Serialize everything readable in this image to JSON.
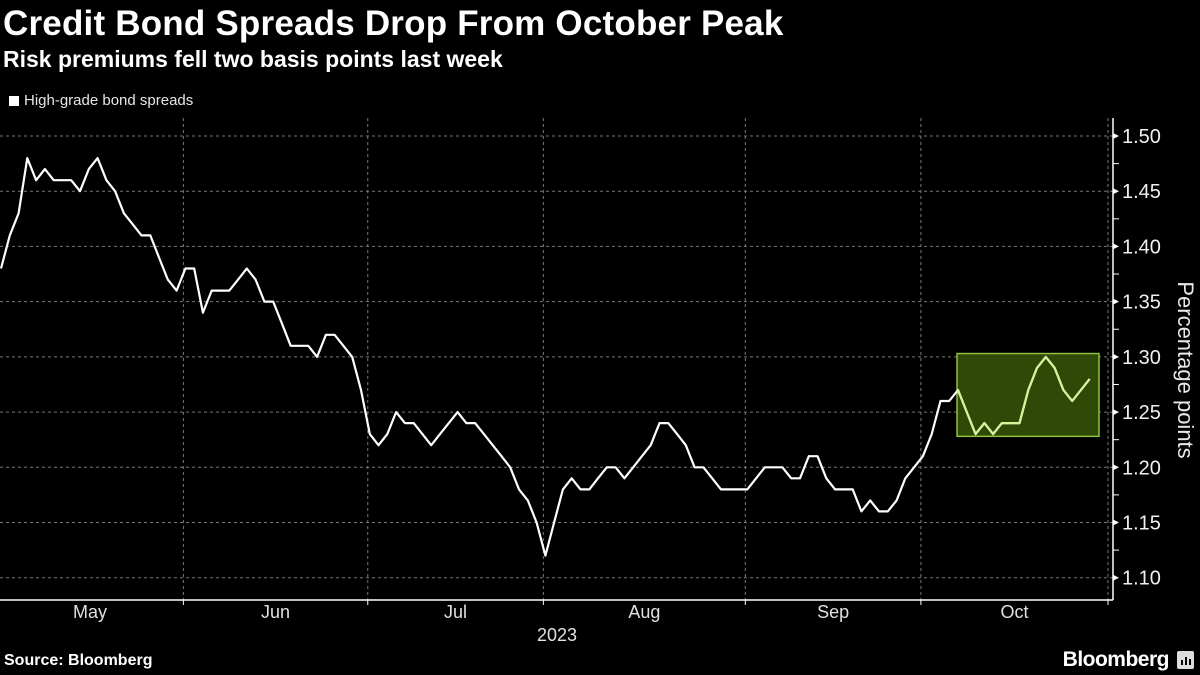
{
  "header": {
    "title": "Credit Bond Spreads Drop From October Peak",
    "subtitle": "Risk premiums fell two basis points last week"
  },
  "footer": {
    "source": "Source: Bloomberg",
    "logo": "Bloomberg"
  },
  "chart_data": {
    "type": "line",
    "title": "Credit Bond Spreads Drop From October Peak",
    "subtitle": "Risk premiums fell two basis points last week",
    "ylabel": "Percentage points",
    "xlabel": "2023",
    "ylim": [
      1.1,
      1.5
    ],
    "yticks": [
      "1.10",
      "1.15",
      "1.20",
      "1.25",
      "1.30",
      "1.35",
      "1.40",
      "1.45",
      "1.50"
    ],
    "y_axis_position": "right",
    "grid": true,
    "legend_position": "top-left",
    "xticks": [
      "May",
      "Jun",
      "Jul",
      "Aug",
      "Sep",
      "Oct"
    ],
    "colors": {
      "line": "#ffffff",
      "highlight_fill": "#2e4a06",
      "highlight_stroke": "#8fc03f",
      "highlight_line": "#d8f29a"
    },
    "highlight": {
      "x_start": "2023-10-06",
      "x_end": "2023-10-27",
      "y_min": 1.23,
      "y_max": 1.3
    },
    "series": [
      {
        "name": "High-grade bond spreads",
        "x": [
          "2023-05-02",
          "2023-05-03",
          "2023-05-04",
          "2023-05-05",
          "2023-05-08",
          "2023-05-09",
          "2023-05-10",
          "2023-05-11",
          "2023-05-12",
          "2023-05-15",
          "2023-05-16",
          "2023-05-17",
          "2023-05-18",
          "2023-05-19",
          "2023-05-22",
          "2023-05-23",
          "2023-05-24",
          "2023-05-25",
          "2023-05-26",
          "2023-05-30",
          "2023-05-31",
          "2023-06-01",
          "2023-06-02",
          "2023-06-05",
          "2023-06-06",
          "2023-06-07",
          "2023-06-08",
          "2023-06-09",
          "2023-06-12",
          "2023-06-13",
          "2023-06-14",
          "2023-06-15",
          "2023-06-16",
          "2023-06-20",
          "2023-06-21",
          "2023-06-22",
          "2023-06-23",
          "2023-06-26",
          "2023-06-27",
          "2023-06-28",
          "2023-06-29",
          "2023-06-30",
          "2023-07-03",
          "2023-07-05",
          "2023-07-06",
          "2023-07-07",
          "2023-07-10",
          "2023-07-11",
          "2023-07-12",
          "2023-07-13",
          "2023-07-14",
          "2023-07-17",
          "2023-07-18",
          "2023-07-19",
          "2023-07-20",
          "2023-07-21",
          "2023-07-24",
          "2023-07-25",
          "2023-07-26",
          "2023-07-27",
          "2023-07-28",
          "2023-07-31",
          "2023-08-01",
          "2023-08-02",
          "2023-08-03",
          "2023-08-04",
          "2023-08-07",
          "2023-08-08",
          "2023-08-09",
          "2023-08-10",
          "2023-08-11",
          "2023-08-14",
          "2023-08-15",
          "2023-08-16",
          "2023-08-17",
          "2023-08-18",
          "2023-08-21",
          "2023-08-22",
          "2023-08-23",
          "2023-08-24",
          "2023-08-25",
          "2023-08-28",
          "2023-08-29",
          "2023-08-30",
          "2023-08-31",
          "2023-09-01",
          "2023-09-05",
          "2023-09-06",
          "2023-09-07",
          "2023-09-08",
          "2023-09-11",
          "2023-09-12",
          "2023-09-13",
          "2023-09-14",
          "2023-09-15",
          "2023-09-18",
          "2023-09-19",
          "2023-09-20",
          "2023-09-21",
          "2023-09-22",
          "2023-09-25",
          "2023-09-26",
          "2023-09-27",
          "2023-09-28",
          "2023-09-29",
          "2023-10-02",
          "2023-10-03",
          "2023-10-04",
          "2023-10-05",
          "2023-10-06",
          "2023-10-09",
          "2023-10-10",
          "2023-10-11",
          "2023-10-12",
          "2023-10-13",
          "2023-10-16",
          "2023-10-17",
          "2023-10-18",
          "2023-10-19",
          "2023-10-20",
          "2023-10-23",
          "2023-10-24",
          "2023-10-25",
          "2023-10-26",
          "2023-10-27"
        ],
        "values": [
          1.38,
          1.41,
          1.43,
          1.48,
          1.46,
          1.47,
          1.46,
          1.46,
          1.46,
          1.45,
          1.47,
          1.48,
          1.46,
          1.45,
          1.43,
          1.42,
          1.41,
          1.41,
          1.39,
          1.37,
          1.36,
          1.38,
          1.38,
          1.34,
          1.36,
          1.36,
          1.36,
          1.37,
          1.38,
          1.37,
          1.35,
          1.35,
          1.33,
          1.31,
          1.31,
          1.31,
          1.3,
          1.32,
          1.32,
          1.31,
          1.3,
          1.27,
          1.23,
          1.22,
          1.23,
          1.25,
          1.24,
          1.24,
          1.23,
          1.22,
          1.23,
          1.24,
          1.25,
          1.24,
          1.24,
          1.23,
          1.22,
          1.21,
          1.2,
          1.18,
          1.17,
          1.15,
          1.12,
          1.15,
          1.18,
          1.19,
          1.18,
          1.18,
          1.19,
          1.2,
          1.2,
          1.19,
          1.2,
          1.21,
          1.22,
          1.24,
          1.24,
          1.23,
          1.22,
          1.2,
          1.2,
          1.19,
          1.18,
          1.18,
          1.18,
          1.18,
          1.19,
          1.2,
          1.2,
          1.2,
          1.19,
          1.19,
          1.21,
          1.21,
          1.19,
          1.18,
          1.18,
          1.18,
          1.16,
          1.17,
          1.16,
          1.16,
          1.17,
          1.19,
          1.2,
          1.21,
          1.23,
          1.26,
          1.26,
          1.27,
          1.25,
          1.23,
          1.24,
          1.23,
          1.24,
          1.24,
          1.24,
          1.27,
          1.29,
          1.3,
          1.29,
          1.27,
          1.26,
          1.27,
          1.28
        ]
      }
    ]
  }
}
